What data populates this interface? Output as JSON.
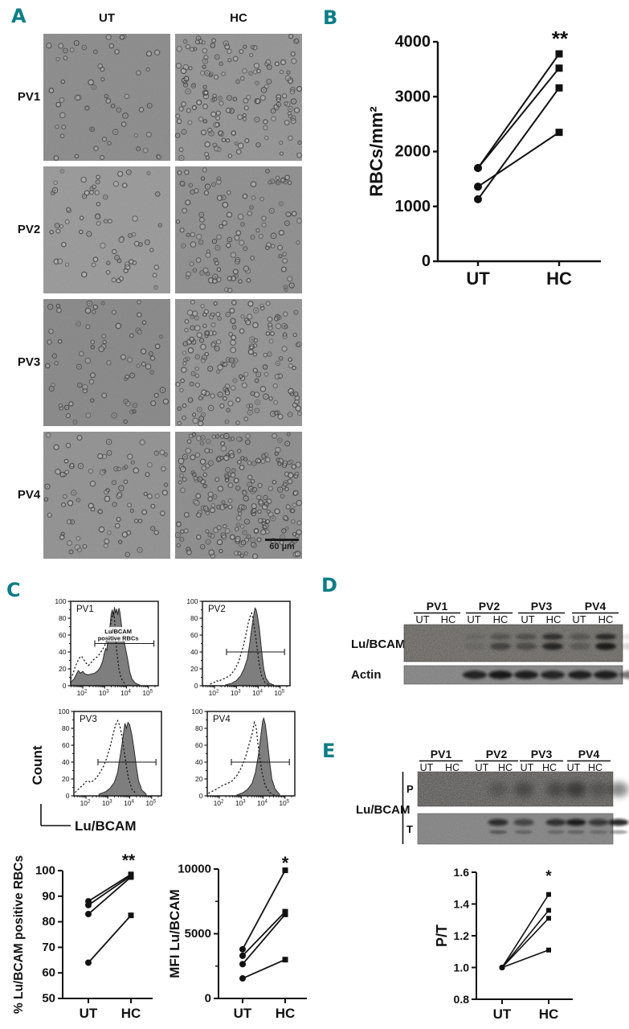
{
  "figure": {
    "panel_letter_color": "#0c7d87",
    "panels": {
      "A": {
        "letter": "A",
        "col_headers": [
          "UT",
          "HC"
        ],
        "row_labels": [
          "PV1",
          "PV2",
          "PV3",
          "PV4"
        ],
        "scale_bar_label": "60 µm",
        "micrographs": [
          {
            "name": "PV1-UT",
            "bg": "#9b9b9b",
            "cell_count": 58,
            "seed": 11
          },
          {
            "name": "PV1-HC",
            "bg": "#a4a4a4",
            "cell_count": 165,
            "seed": 12
          },
          {
            "name": "PV2-UT",
            "bg": "#a9a9a9",
            "cell_count": 70,
            "seed": 21
          },
          {
            "name": "PV2-HC",
            "bg": "#9e9e9e",
            "cell_count": 120,
            "seed": 22
          },
          {
            "name": "PV3-UT",
            "bg": "#979797",
            "cell_count": 75,
            "seed": 31
          },
          {
            "name": "PV3-HC",
            "bg": "#a3a3a3",
            "cell_count": 190,
            "seed": 32
          },
          {
            "name": "PV4-UT",
            "bg": "#a1a1a1",
            "cell_count": 90,
            "seed": 41
          },
          {
            "name": "PV4-HC",
            "bg": "#9c9c9c",
            "cell_count": 235,
            "seed": 42
          }
        ]
      },
      "B": {
        "letter": "B"
      },
      "C": {
        "letter": "C",
        "count_axis_label": "Count",
        "marker_axis_label": "Lu/BCAM"
      },
      "D": {
        "letter": "D",
        "groups": [
          "PV1",
          "PV2",
          "PV3",
          "PV4"
        ],
        "lane_labels": [
          "UT",
          "HC"
        ],
        "rows": [
          {
            "label": "Lu/BCAM",
            "upper": [
              0.12,
              0.32,
              0.38,
              0.72,
              0.32,
              0.78,
              0.1,
              0.68
            ],
            "lower": [
              0.1,
              0.52,
              0.42,
              0.82,
              0.26,
              0.95,
              0.16,
              0.55
            ]
          },
          {
            "label": "Actin",
            "bands": [
              0.82,
              0.9,
              0.86,
              0.8,
              0.86,
              0.86,
              0.55,
              0.72
            ]
          }
        ]
      },
      "E": {
        "letter": "E",
        "groups": [
          "PV1",
          "PV2",
          "PV3",
          "PV4"
        ],
        "lane_labels": [
          "UT",
          "HC"
        ],
        "bracket_label": "Lu/BCAM",
        "strips": [
          {
            "label": "P",
            "smudge": [
              0.22,
              0.38,
              0.38,
              0.58,
              0.26,
              0.42,
              0.38,
              0.72
            ]
          },
          {
            "label": "T",
            "main": [
              0.75,
              0.55,
              0.72,
              0.88,
              0.65,
              0.88,
              0.55,
              0.88
            ],
            "sub": [
              0.45,
              0.35,
              0.3,
              0.35,
              0.28,
              0.4,
              0.25,
              0.32
            ]
          }
        ]
      }
    }
  },
  "chart_data": [
    {
      "id": "B",
      "type": "line",
      "subtype": "paired-before-after",
      "title": "",
      "ylabel": "RBCs/mm²",
      "categories": [
        "UT",
        "HC"
      ],
      "ylim": [
        0,
        4000
      ],
      "yticks": [
        0,
        1000,
        2000,
        3000,
        4000
      ],
      "ytick_labels": [
        "0",
        "1000",
        "2000",
        "3000",
        "4000"
      ],
      "markers": [
        "circle",
        "square"
      ],
      "grid": false,
      "pairs": [
        [
          1700,
          3780
        ],
        [
          1700,
          3520
        ],
        [
          1130,
          3160
        ],
        [
          1360,
          2350
        ]
      ],
      "significance": "**"
    },
    {
      "id": "C_pct",
      "type": "line",
      "subtype": "paired-before-after",
      "title": "",
      "ylabel": "% Lu/BCAM positive RBCs",
      "categories": [
        "UT",
        "HC"
      ],
      "ylim": [
        50,
        100
      ],
      "yticks": [
        50,
        60,
        70,
        80,
        90,
        100
      ],
      "ytick_labels": [
        "50",
        "60",
        "70",
        "80",
        "90",
        "100"
      ],
      "markers": [
        "circle",
        "square"
      ],
      "grid": false,
      "pairs": [
        [
          88,
          98.5
        ],
        [
          86.5,
          98
        ],
        [
          83,
          97.5
        ],
        [
          64,
          82.5
        ]
      ],
      "significance": "**"
    },
    {
      "id": "C_mfi",
      "type": "line",
      "subtype": "paired-before-after",
      "title": "",
      "ylabel": "MFI Lu/BCAM",
      "categories": [
        "UT",
        "HC"
      ],
      "ylim": [
        0,
        10000
      ],
      "yticks": [
        0,
        5000,
        10000
      ],
      "ytick_labels": [
        "0",
        "5000",
        "10000"
      ],
      "yticks_minor": [
        2500,
        7500
      ],
      "markers": [
        "circle",
        "square"
      ],
      "grid": false,
      "pairs": [
        [
          3800,
          9900
        ],
        [
          3300,
          6700
        ],
        [
          2650,
          6500
        ],
        [
          1550,
          3000
        ]
      ],
      "significance": "*"
    },
    {
      "id": "E_pt",
      "type": "line",
      "subtype": "paired-before-after",
      "title": "",
      "ylabel": "P/T",
      "categories": [
        "UT",
        "HC"
      ],
      "ylim": [
        0.8,
        1.6
      ],
      "yticks": [
        0.8,
        1.0,
        1.2,
        1.4,
        1.6
      ],
      "ytick_labels": [
        "0.8",
        "1.0",
        "1.2",
        "1.4",
        "1.6"
      ],
      "markers": [
        "circle",
        "square"
      ],
      "grid": false,
      "pairs": [
        [
          1.0,
          1.46
        ],
        [
          1.0,
          1.36
        ],
        [
          1.0,
          1.31
        ],
        [
          1.0,
          1.11
        ]
      ],
      "significance": "*"
    },
    {
      "id": "hist_PV1",
      "type": "histogram",
      "label": "PV1",
      "xlog_range": [
        1.45,
        5.45
      ],
      "xtick_exponents": [
        2,
        3,
        4,
        5
      ],
      "ylim": [
        0,
        100
      ],
      "yticks": [
        0,
        20,
        40,
        60,
        80,
        100
      ],
      "gate": {
        "y": 50,
        "x1": 2.55,
        "x2": 5.25,
        "label_lines": [
          "Lu/BCAM",
          "positive RBCs"
        ],
        "label_x": 3.62,
        "label_v": 62
      },
      "filled": [
        [
          1.45,
          4
        ],
        [
          1.6,
          8
        ],
        [
          1.7,
          13
        ],
        [
          1.8,
          18
        ],
        [
          1.9,
          15
        ],
        [
          2.0,
          17
        ],
        [
          2.1,
          14
        ],
        [
          2.25,
          13
        ],
        [
          2.4,
          14
        ],
        [
          2.55,
          15
        ],
        [
          2.7,
          18
        ],
        [
          2.8,
          22
        ],
        [
          2.9,
          28
        ],
        [
          3.0,
          40
        ],
        [
          3.05,
          44
        ],
        [
          3.1,
          42
        ],
        [
          3.15,
          56
        ],
        [
          3.2,
          62
        ],
        [
          3.25,
          72
        ],
        [
          3.3,
          85
        ],
        [
          3.35,
          90
        ],
        [
          3.4,
          82
        ],
        [
          3.45,
          93
        ],
        [
          3.5,
          86
        ],
        [
          3.55,
          91
        ],
        [
          3.6,
          84
        ],
        [
          3.65,
          92
        ],
        [
          3.7,
          87
        ],
        [
          3.75,
          76
        ],
        [
          3.8,
          66
        ],
        [
          3.85,
          58
        ],
        [
          3.95,
          45
        ],
        [
          4.05,
          32
        ],
        [
          4.15,
          16
        ],
        [
          4.25,
          8
        ],
        [
          4.4,
          3
        ],
        [
          4.6,
          1
        ]
      ],
      "dotted": [
        [
          1.45,
          8
        ],
        [
          1.55,
          14
        ],
        [
          1.65,
          22
        ],
        [
          1.75,
          28
        ],
        [
          1.85,
          33
        ],
        [
          1.95,
          35
        ],
        [
          2.05,
          31
        ],
        [
          2.15,
          27
        ],
        [
          2.25,
          24
        ],
        [
          2.35,
          26
        ],
        [
          2.45,
          30
        ],
        [
          2.55,
          32
        ],
        [
          2.65,
          34
        ],
        [
          2.75,
          37
        ],
        [
          2.85,
          41
        ],
        [
          2.95,
          45
        ],
        [
          3.05,
          50
        ],
        [
          3.15,
          58
        ],
        [
          3.25,
          68
        ],
        [
          3.3,
          76
        ],
        [
          3.35,
          83
        ],
        [
          3.4,
          88
        ],
        [
          3.45,
          80
        ],
        [
          3.5,
          60
        ],
        [
          3.55,
          42
        ],
        [
          3.65,
          20
        ],
        [
          3.75,
          9
        ],
        [
          3.9,
          3
        ]
      ]
    },
    {
      "id": "hist_PV2",
      "type": "histogram",
      "label": "PV2",
      "xlog_range": [
        1.45,
        5.45
      ],
      "xtick_exponents": [
        2,
        3,
        4,
        5
      ],
      "ylim": [
        0,
        100
      ],
      "yticks": [
        0,
        20,
        40,
        60,
        80,
        100
      ],
      "gate": {
        "y": 40,
        "x1": 2.55,
        "x2": 5.2
      },
      "filled": [
        [
          2.5,
          1
        ],
        [
          2.8,
          3
        ],
        [
          3.0,
          6
        ],
        [
          3.2,
          12
        ],
        [
          3.35,
          20
        ],
        [
          3.5,
          32
        ],
        [
          3.6,
          48
        ],
        [
          3.7,
          68
        ],
        [
          3.8,
          84
        ],
        [
          3.85,
          92
        ],
        [
          3.9,
          90
        ],
        [
          3.95,
          85
        ],
        [
          4.05,
          68
        ],
        [
          4.15,
          42
        ],
        [
          4.25,
          20
        ],
        [
          4.35,
          9
        ],
        [
          4.5,
          3
        ],
        [
          4.7,
          1
        ]
      ],
      "dotted": [
        [
          1.8,
          2
        ],
        [
          2.0,
          4
        ],
        [
          2.1,
          6
        ],
        [
          2.2,
          5
        ],
        [
          2.3,
          7
        ],
        [
          2.5,
          9
        ],
        [
          2.7,
          12
        ],
        [
          2.9,
          18
        ],
        [
          3.1,
          28
        ],
        [
          3.3,
          45
        ],
        [
          3.45,
          62
        ],
        [
          3.55,
          75
        ],
        [
          3.65,
          84
        ],
        [
          3.7,
          86
        ],
        [
          3.75,
          80
        ],
        [
          3.85,
          65
        ],
        [
          3.95,
          45
        ],
        [
          4.05,
          25
        ],
        [
          4.15,
          12
        ],
        [
          4.3,
          4
        ],
        [
          4.5,
          1
        ]
      ]
    },
    {
      "id": "hist_PV3",
      "type": "histogram",
      "label": "PV3",
      "xlog_range": [
        1.45,
        5.45
      ],
      "xtick_exponents": [
        2,
        3,
        4,
        5
      ],
      "ylim": [
        0,
        100
      ],
      "yticks": [
        0,
        20,
        40,
        60,
        80,
        100
      ],
      "gate": {
        "y": 40,
        "x1": 2.55,
        "x2": 5.2
      },
      "filled": [
        [
          2.6,
          2
        ],
        [
          2.9,
          5
        ],
        [
          3.1,
          9
        ],
        [
          3.3,
          16
        ],
        [
          3.45,
          28
        ],
        [
          3.55,
          45
        ],
        [
          3.65,
          62
        ],
        [
          3.72,
          75
        ],
        [
          3.78,
          86
        ],
        [
          3.85,
          80
        ],
        [
          3.92,
          87
        ],
        [
          4.0,
          84
        ],
        [
          4.1,
          72
        ],
        [
          4.2,
          55
        ],
        [
          4.3,
          35
        ],
        [
          4.4,
          18
        ],
        [
          4.55,
          7
        ],
        [
          4.75,
          2
        ]
      ],
      "dotted": [
        [
          1.5,
          4
        ],
        [
          1.7,
          9
        ],
        [
          1.9,
          14
        ],
        [
          2.0,
          17
        ],
        [
          2.1,
          18
        ],
        [
          2.2,
          16
        ],
        [
          2.35,
          18
        ],
        [
          2.5,
          22
        ],
        [
          2.65,
          28
        ],
        [
          2.8,
          35
        ],
        [
          2.95,
          45
        ],
        [
          3.1,
          58
        ],
        [
          3.25,
          74
        ],
        [
          3.35,
          84
        ],
        [
          3.45,
          89
        ],
        [
          3.55,
          83
        ],
        [
          3.65,
          70
        ],
        [
          3.75,
          52
        ],
        [
          3.85,
          35
        ],
        [
          3.95,
          20
        ],
        [
          4.1,
          8
        ],
        [
          4.3,
          2
        ]
      ]
    },
    {
      "id": "hist_PV4",
      "type": "histogram",
      "label": "PV4",
      "xlog_range": [
        1.45,
        5.45
      ],
      "xtick_exponents": [
        2,
        3,
        4,
        5
      ],
      "ylim": [
        0,
        100
      ],
      "yticks": [
        0,
        20,
        40,
        60,
        80,
        100
      ],
      "gate": {
        "y": 40,
        "x1": 2.55,
        "x2": 5.2
      },
      "filled": [
        [
          2.8,
          1
        ],
        [
          3.1,
          4
        ],
        [
          3.3,
          8
        ],
        [
          3.5,
          15
        ],
        [
          3.65,
          28
        ],
        [
          3.8,
          50
        ],
        [
          3.9,
          72
        ],
        [
          3.98,
          88
        ],
        [
          4.03,
          92
        ],
        [
          4.1,
          85
        ],
        [
          4.2,
          65
        ],
        [
          4.3,
          40
        ],
        [
          4.4,
          20
        ],
        [
          4.55,
          8
        ],
        [
          4.75,
          2
        ]
      ],
      "dotted": [
        [
          1.5,
          3
        ],
        [
          1.8,
          7
        ],
        [
          2.0,
          10
        ],
        [
          2.2,
          13
        ],
        [
          2.4,
          15
        ],
        [
          2.6,
          18
        ],
        [
          2.8,
          24
        ],
        [
          3.0,
          33
        ],
        [
          3.2,
          46
        ],
        [
          3.35,
          60
        ],
        [
          3.5,
          74
        ],
        [
          3.6,
          87
        ],
        [
          3.68,
          82
        ],
        [
          3.75,
          65
        ],
        [
          3.85,
          45
        ],
        [
          3.95,
          28
        ],
        [
          4.1,
          12
        ],
        [
          4.3,
          4
        ],
        [
          4.5,
          1
        ]
      ]
    }
  ]
}
